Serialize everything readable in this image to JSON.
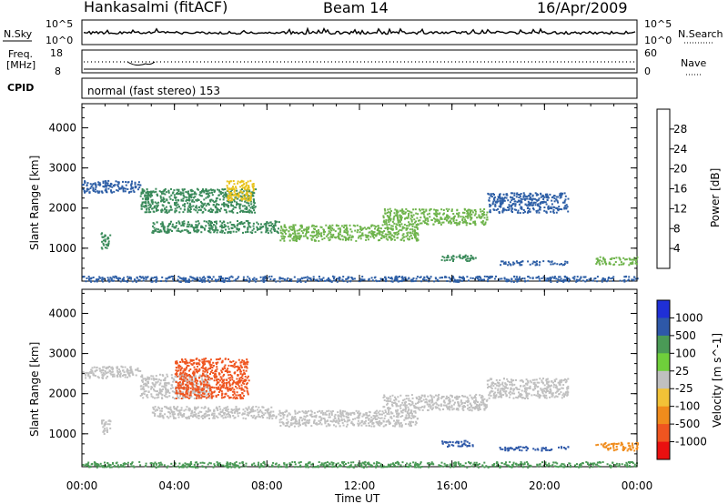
{
  "header": {
    "station": "Hankasalmi (fitACF)",
    "beam": "Beam 14",
    "date": "16/Apr/2009"
  },
  "nsky_panel": {
    "left_label": "N.Sky",
    "left_tick_top": "10^5",
    "left_tick_bottom": "10^0",
    "right_tick_top": "10^5",
    "right_tick_bottom": "10^0",
    "right_label": "N.Search"
  },
  "freq_panel": {
    "left_label_1": "Freq.",
    "left_label_2": "[MHz]",
    "left_tick_top": "18",
    "left_tick_bottom": "8",
    "right_tick_top": "60",
    "right_tick_bottom": "0",
    "right_label": "Nave",
    "freq_level_mhz": 12
  },
  "cpid_panel": {
    "label": "CPID",
    "text": "normal (fast stereo) 153"
  },
  "colors": {
    "power": [
      "#1f1fe6",
      "#2e5fa6",
      "#3a8a5a",
      "#6fb44c",
      "#e8c21b",
      "#f08020",
      "#ef2a1a"
    ],
    "velocity": [
      "#1f2fd6",
      "#2e58a8",
      "#4a9a56",
      "#6fcf3b",
      "#c0c0c0",
      "#f2c237",
      "#f08c1c",
      "#ef5520",
      "#e91010"
    ]
  },
  "chart_data": [
    {
      "type": "heatmap",
      "title": "Power",
      "xlabel": "",
      "ylabel": "Slant Range [km]",
      "x_ticks": [
        "00:00",
        "04:00",
        "08:00",
        "12:00",
        "16:00",
        "20:00",
        "00:00"
      ],
      "y_ticks": [
        "1000",
        "2000",
        "3000",
        "4000"
      ],
      "xlim_hours": [
        0,
        24
      ],
      "ylim_km": [
        180,
        4600
      ],
      "colorbar": {
        "label": "Power [dB]",
        "ticks": [
          "4",
          "8",
          "12",
          "16",
          "20",
          "24",
          "28"
        ],
        "range": [
          0,
          30
        ]
      },
      "echo_bands": [
        {
          "t_start": 0.0,
          "t_end": 2.5,
          "range_min_km": 2400,
          "range_max_km": 2700,
          "power_db": 8
        },
        {
          "t_start": 2.5,
          "t_end": 7.5,
          "range_min_km": 1900,
          "range_max_km": 2500,
          "power_db": 10
        },
        {
          "t_start": 6.2,
          "t_end": 7.4,
          "range_min_km": 2200,
          "range_max_km": 2700,
          "power_db": 20
        },
        {
          "t_start": 0.8,
          "t_end": 1.2,
          "range_min_km": 1000,
          "range_max_km": 1400,
          "power_db": 9
        },
        {
          "t_start": 3.0,
          "t_end": 8.5,
          "range_min_km": 1400,
          "range_max_km": 1700,
          "power_db": 9
        },
        {
          "t_start": 8.5,
          "t_end": 14.5,
          "range_min_km": 1200,
          "range_max_km": 1600,
          "power_db": 14
        },
        {
          "t_start": 13.0,
          "t_end": 17.5,
          "range_min_km": 1600,
          "range_max_km": 2000,
          "power_db": 16
        },
        {
          "t_start": 17.5,
          "t_end": 21.0,
          "range_min_km": 1900,
          "range_max_km": 2400,
          "power_db": 8
        },
        {
          "t_start": 15.5,
          "t_end": 17.0,
          "range_min_km": 700,
          "range_max_km": 850,
          "power_db": 10
        },
        {
          "t_start": 18.0,
          "t_end": 21.0,
          "range_min_km": 600,
          "range_max_km": 700,
          "power_db": 8
        },
        {
          "t_start": 22.2,
          "t_end": 24.0,
          "range_min_km": 600,
          "range_max_km": 800,
          "power_db": 14
        },
        {
          "t_start": 0.0,
          "t_end": 24.0,
          "range_min_km": 180,
          "range_max_km": 320,
          "power_db": 6
        }
      ]
    },
    {
      "type": "heatmap",
      "title": "Velocity",
      "xlabel": "Time UT",
      "ylabel": "Slant Range [km]",
      "x_ticks": [
        "00:00",
        "04:00",
        "08:00",
        "12:00",
        "16:00",
        "20:00",
        "00:00"
      ],
      "y_ticks": [
        "1000",
        "2000",
        "3000",
        "4000"
      ],
      "xlim_hours": [
        0,
        24
      ],
      "ylim_km": [
        180,
        4600
      ],
      "colorbar": {
        "label": "Velocity [m s^-1]",
        "ticks": [
          "1000",
          "500",
          "100",
          "25",
          "-25",
          "-100",
          "-500",
          "-1000"
        ]
      },
      "echo_bands": [
        {
          "t_start": 0.0,
          "t_end": 2.5,
          "range_min_km": 2400,
          "range_max_km": 2700,
          "velocity_ms": 0
        },
        {
          "t_start": 2.5,
          "t_end": 5.5,
          "range_min_km": 1900,
          "range_max_km": 2500,
          "velocity_ms": 0
        },
        {
          "t_start": 4.0,
          "t_end": 7.2,
          "range_min_km": 1900,
          "range_max_km": 2900,
          "velocity_ms": -800
        },
        {
          "t_start": 0.8,
          "t_end": 1.2,
          "range_min_km": 1000,
          "range_max_km": 1400,
          "velocity_ms": 0
        },
        {
          "t_start": 3.0,
          "t_end": 8.5,
          "range_min_km": 1400,
          "range_max_km": 1700,
          "velocity_ms": 0
        },
        {
          "t_start": 8.5,
          "t_end": 14.5,
          "range_min_km": 1200,
          "range_max_km": 1600,
          "velocity_ms": 0
        },
        {
          "t_start": 13.0,
          "t_end": 17.5,
          "range_min_km": 1600,
          "range_max_km": 2000,
          "velocity_ms": 0
        },
        {
          "t_start": 17.5,
          "t_end": 21.0,
          "range_min_km": 1900,
          "range_max_km": 2400,
          "velocity_ms": 0
        },
        {
          "t_start": 15.5,
          "t_end": 17.0,
          "range_min_km": 700,
          "range_max_km": 850,
          "velocity_ms": 150
        },
        {
          "t_start": 18.0,
          "t_end": 21.0,
          "range_min_km": 600,
          "range_max_km": 700,
          "velocity_ms": 150
        },
        {
          "t_start": 22.2,
          "t_end": 24.0,
          "range_min_km": 600,
          "range_max_km": 800,
          "velocity_ms": -300
        },
        {
          "t_start": 0.0,
          "t_end": 24.0,
          "range_min_km": 180,
          "range_max_km": 320,
          "velocity_ms": 100
        }
      ]
    }
  ]
}
